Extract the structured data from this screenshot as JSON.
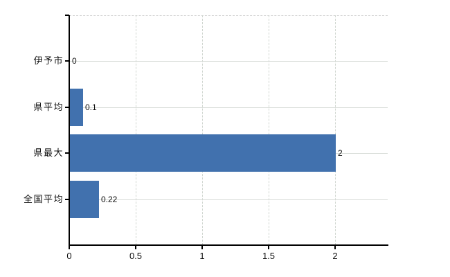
{
  "chart_data": {
    "type": "bar",
    "orientation": "horizontal",
    "title": "",
    "categories": [
      "伊予市",
      "県平均",
      "県最大",
      "全国平均"
    ],
    "values": [
      0,
      0.1,
      2,
      0.22
    ],
    "value_labels": [
      "0",
      "0.1",
      "2",
      "0.22"
    ],
    "x_tick_values": [
      0,
      0.5,
      1,
      1.5,
      2
    ],
    "x_tick_labels": [
      "0",
      "0.5",
      "1",
      "1.5",
      "2"
    ],
    "xlim": [
      0,
      2.4
    ],
    "grid": true,
    "legend": false,
    "bar_color": "#4171ae",
    "grid_color": "#d4d4d4",
    "axis_color": "#000000",
    "text_color": "#111111"
  }
}
